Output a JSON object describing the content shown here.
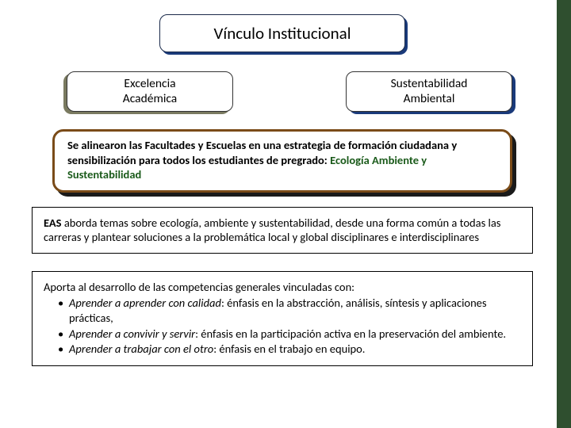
{
  "colors": {
    "background": "#ffffff",
    "right_bar": "#2f4f2f",
    "title_border": "#1a2a4a",
    "title_shadow": "#1a3a7a",
    "pill_left_shadow": "#7a7a60",
    "pill_right_shadow": "#1a3a7a",
    "brown_card_border": "#7a4b18",
    "brown_card_shadow": "#1a1a1a",
    "highlight_text": "#1a5a1a",
    "text": "#000000"
  },
  "typography": {
    "family": "Calibri",
    "title_fontsize": 21,
    "pill_fontsize": 15.5,
    "body_fontsize": 14.5
  },
  "title": "Vínculo Institucional",
  "pills": {
    "left_line1": "Excelencia",
    "left_line2": "Académica",
    "right_line1": "Sustentabilidad",
    "right_line2": "Ambiental"
  },
  "brown_card": {
    "text_before": "Se alinearon las Facultades y Escuelas en una estrategia de formación ciudadana y sensibilización para todos los estudiantes de pregrado:  ",
    "highlight": "Ecología Ambiente y Sustentabilidad"
  },
  "box_eas": {
    "lead_bold": "EAS",
    "lead_rest": " aborda temas sobre ecología, ambiente y sustentabilidad, desde una forma común a todas las carreras y plantear soluciones a la problemática local y global disciplinares e interdisciplinares"
  },
  "box_comp": {
    "intro": "Aporta al desarrollo de las competencias generales vinculadas con:",
    "items": [
      {
        "label": "Aprender a aprender con calidad",
        "rest": ": énfasis en la abstracción, análisis, síntesis y aplicaciones prácticas,"
      },
      {
        "label": "Aprender a convivir y servir",
        "rest": ": énfasis en la participación activa en la preservación del ambiente."
      },
      {
        "label": "Aprender a trabajar con el otro",
        "rest": ": énfasis en el trabajo en equipo."
      }
    ]
  }
}
